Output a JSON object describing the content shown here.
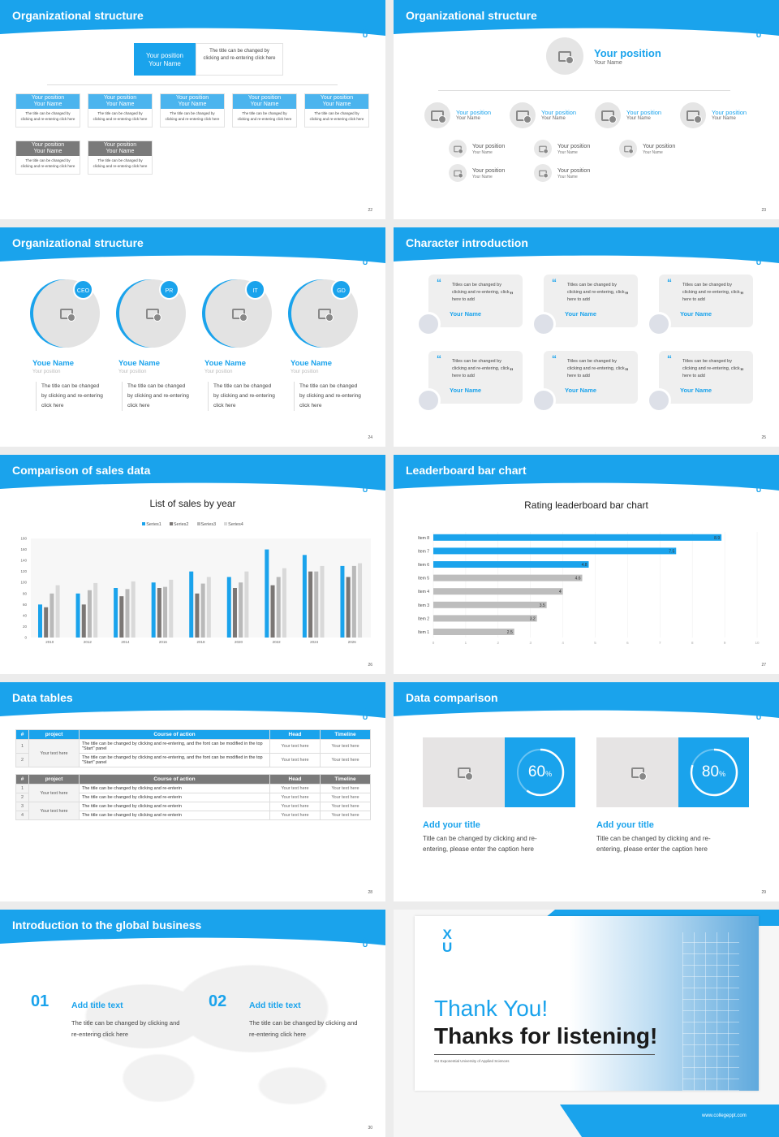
{
  "colors": {
    "accent": "#1aa3ec",
    "gray": "#7a7a7a",
    "light": "#ececec"
  },
  "logo_text": "XU",
  "slides": [
    {
      "num": "22",
      "title": "Organizational structure",
      "top": {
        "position": "Your position",
        "name": "Your Name",
        "desc": "The title can be changed by clicking and re-entering click here"
      },
      "row1": [
        {
          "position": "Your position",
          "name": "Your Name",
          "desc": "The title can be changed by clicking and re-entering click here"
        },
        {
          "position": "Your position",
          "name": "Your Name",
          "desc": "The title can be changed by clicking and re-entering click here"
        },
        {
          "position": "Your position",
          "name": "Your Name",
          "desc": "The title can be changed by clicking and re-entering click here"
        },
        {
          "position": "Your position",
          "name": "Your Name",
          "desc": "The title can be changed by clicking and re-entering click here"
        },
        {
          "position": "Your position",
          "name": "Your Name",
          "desc": "The title can be changed by clicking and re-entering click here"
        }
      ],
      "row2": [
        {
          "position": "Your position",
          "name": "Your Name",
          "desc": "The title can be changed by clicking and re-entering click here"
        },
        {
          "position": "Your position",
          "name": "Your Name",
          "desc": "The title can be changed by clicking and re-entering click here"
        }
      ]
    },
    {
      "num": "23",
      "title": "Organizational structure",
      "top": {
        "position": "Your position",
        "name": "Your Name"
      },
      "level1": [
        {
          "position": "Your position",
          "name": "Your Name"
        },
        {
          "position": "Your position",
          "name": "Your Name"
        },
        {
          "position": "Your position",
          "name": "Your Name"
        },
        {
          "position": "Your position",
          "name": "Your Name"
        }
      ],
      "level2": [
        [
          {
            "position": "Your position",
            "name": "Your Name"
          },
          {
            "position": "Your position",
            "name": "Your Name"
          }
        ],
        [
          {
            "position": "Your position",
            "name": "Your Name"
          },
          {
            "position": "Your position",
            "name": "Your Name"
          }
        ],
        [
          {
            "position": "Your position",
            "name": "Your Name"
          }
        ]
      ]
    },
    {
      "num": "24",
      "title": "Organizational structure",
      "people": [
        {
          "badge": "CEO",
          "name": "Youe Name",
          "position": "Your position",
          "desc": "The title can be changed by clicking and re-entering click here"
        },
        {
          "badge": "PR",
          "name": "Youe Name",
          "position": "Your position",
          "desc": "The title can be changed by clicking and re-entering click here"
        },
        {
          "badge": "IT",
          "name": "Youe Name",
          "position": "Your position",
          "desc": "The title can be changed by clicking and re-entering click here"
        },
        {
          "badge": "GD",
          "name": "Youe Name",
          "position": "Your position",
          "desc": "The title can be changed by clicking and re-entering click here"
        }
      ]
    },
    {
      "num": "25",
      "title": "Character introduction",
      "cards": [
        {
          "text": "Titles can be changed by clicking and re-entering, click here to add",
          "name": "Your Name"
        },
        {
          "text": "Titles can be changed by clicking and re-entering, click here to add",
          "name": "Your Name"
        },
        {
          "text": "Titles can be changed by clicking and re-entering, click here to add",
          "name": "Your Name"
        },
        {
          "text": "Titles can be changed by clicking and re-entering, click here to add",
          "name": "Your Name"
        },
        {
          "text": "Titles can be changed by clicking and re-entering, click here to add",
          "name": "Your Name"
        },
        {
          "text": "Titles can be changed by clicking and re-entering, click here to add",
          "name": "Your Name"
        }
      ]
    },
    {
      "num": "26",
      "title": "Comparison of sales data"
    },
    {
      "num": "27",
      "title": "Leaderboard bar chart"
    },
    {
      "num": "28",
      "title": "Data tables",
      "table1": {
        "headers": [
          "#",
          "project",
          "Course of action",
          "Head",
          "Timeline"
        ],
        "project": "Your text here",
        "rows": [
          [
            "1",
            "The title can be changed by clicking and re-entering, and the font can be modified in the top \"Start\" panel",
            "Your text here",
            "Your text here"
          ],
          [
            "2",
            "The title can be changed by clicking and re-entering, and the font can be modified in the top \"Start\" panel",
            "Your text here",
            "Your text here"
          ]
        ]
      },
      "table2": {
        "headers": [
          "#",
          "project",
          "Course of action",
          "Head",
          "Timeline"
        ],
        "projects": [
          "Your text here",
          "Your text here"
        ],
        "rows": [
          [
            "1",
            "The title can be changed by clicking and re-enterin",
            "Your text here",
            "Your text here"
          ],
          [
            "2",
            "The title can be changed by clicking and re-enterin",
            "Your text here",
            "Your text here"
          ],
          [
            "3",
            "The title can be changed by clicking and re-enterin",
            "Your text here",
            "Your text here"
          ],
          [
            "4",
            "The title can be changed by clicking and re-enterin",
            "Your text here",
            "Your text here"
          ]
        ]
      }
    },
    {
      "num": "29",
      "title": "Data comparison",
      "items": [
        {
          "value": 60,
          "label": "60",
          "unit": "%",
          "heading": "Add your title",
          "desc": "Title can be changed by clicking and re-entering, please enter the caption here"
        },
        {
          "value": 80,
          "label": "80",
          "unit": "%",
          "heading": "Add your title",
          "desc": "Title can be changed by clicking and re-entering, please enter the caption here"
        }
      ]
    },
    {
      "num": "30",
      "title": "Introduction to the global business",
      "items": [
        {
          "num": "01",
          "heading": "Add title text",
          "desc": "The title can be changed by clicking and re-entering click here"
        },
        {
          "num": "02",
          "heading": "Add title text",
          "desc": "The title can be changed by clicking and re-entering click here"
        }
      ]
    },
    {
      "thanks": "Thank You!",
      "listening": "Thanks for listening!",
      "university": "XU Exponential University of Applied Sciences",
      "website": "www.collegeppt.com"
    }
  ],
  "chart_data": [
    {
      "type": "bar",
      "title": "List of sales by year",
      "categories": [
        "2010",
        "2012",
        "2014",
        "2016",
        "2018",
        "2020",
        "2022",
        "2024",
        "2026"
      ],
      "series": [
        {
          "name": "Series1",
          "color": "#1aa3ec",
          "values": [
            60,
            80,
            90,
            100,
            120,
            110,
            160,
            150,
            130
          ]
        },
        {
          "name": "Series2",
          "color": "#7b7775",
          "values": [
            55,
            60,
            75,
            90,
            80,
            90,
            95,
            120,
            110
          ]
        },
        {
          "name": "Series3",
          "color": "#b9b9b9",
          "values": [
            80,
            86,
            88,
            92,
            98,
            100,
            110,
            120,
            130
          ]
        },
        {
          "name": "Series4",
          "color": "#d9d9d9",
          "values": [
            95,
            99,
            102,
            105,
            110,
            120,
            126,
            130,
            135
          ]
        }
      ],
      "ylim": [
        0,
        180
      ],
      "yticks": [
        0,
        20,
        40,
        60,
        80,
        100,
        120,
        140,
        160,
        180
      ],
      "legend": "top",
      "grid": false
    },
    {
      "type": "bar",
      "orientation": "horizontal",
      "title": "Rating leaderboard bar chart",
      "categories": [
        "Item 1",
        "Item 2",
        "Item 3",
        "Item 4",
        "Item 5",
        "Item 6",
        "Item 7",
        "Item 8"
      ],
      "values": [
        2.5,
        3.2,
        3.5,
        4,
        4.6,
        4.8,
        7.5,
        8.9
      ],
      "highlight": [
        "Item 6",
        "Item 7",
        "Item 8"
      ],
      "xlim": [
        0,
        10
      ],
      "xticks": [
        0,
        1,
        2,
        3,
        4,
        5,
        6,
        7,
        8,
        9,
        10
      ],
      "grid": true
    }
  ]
}
